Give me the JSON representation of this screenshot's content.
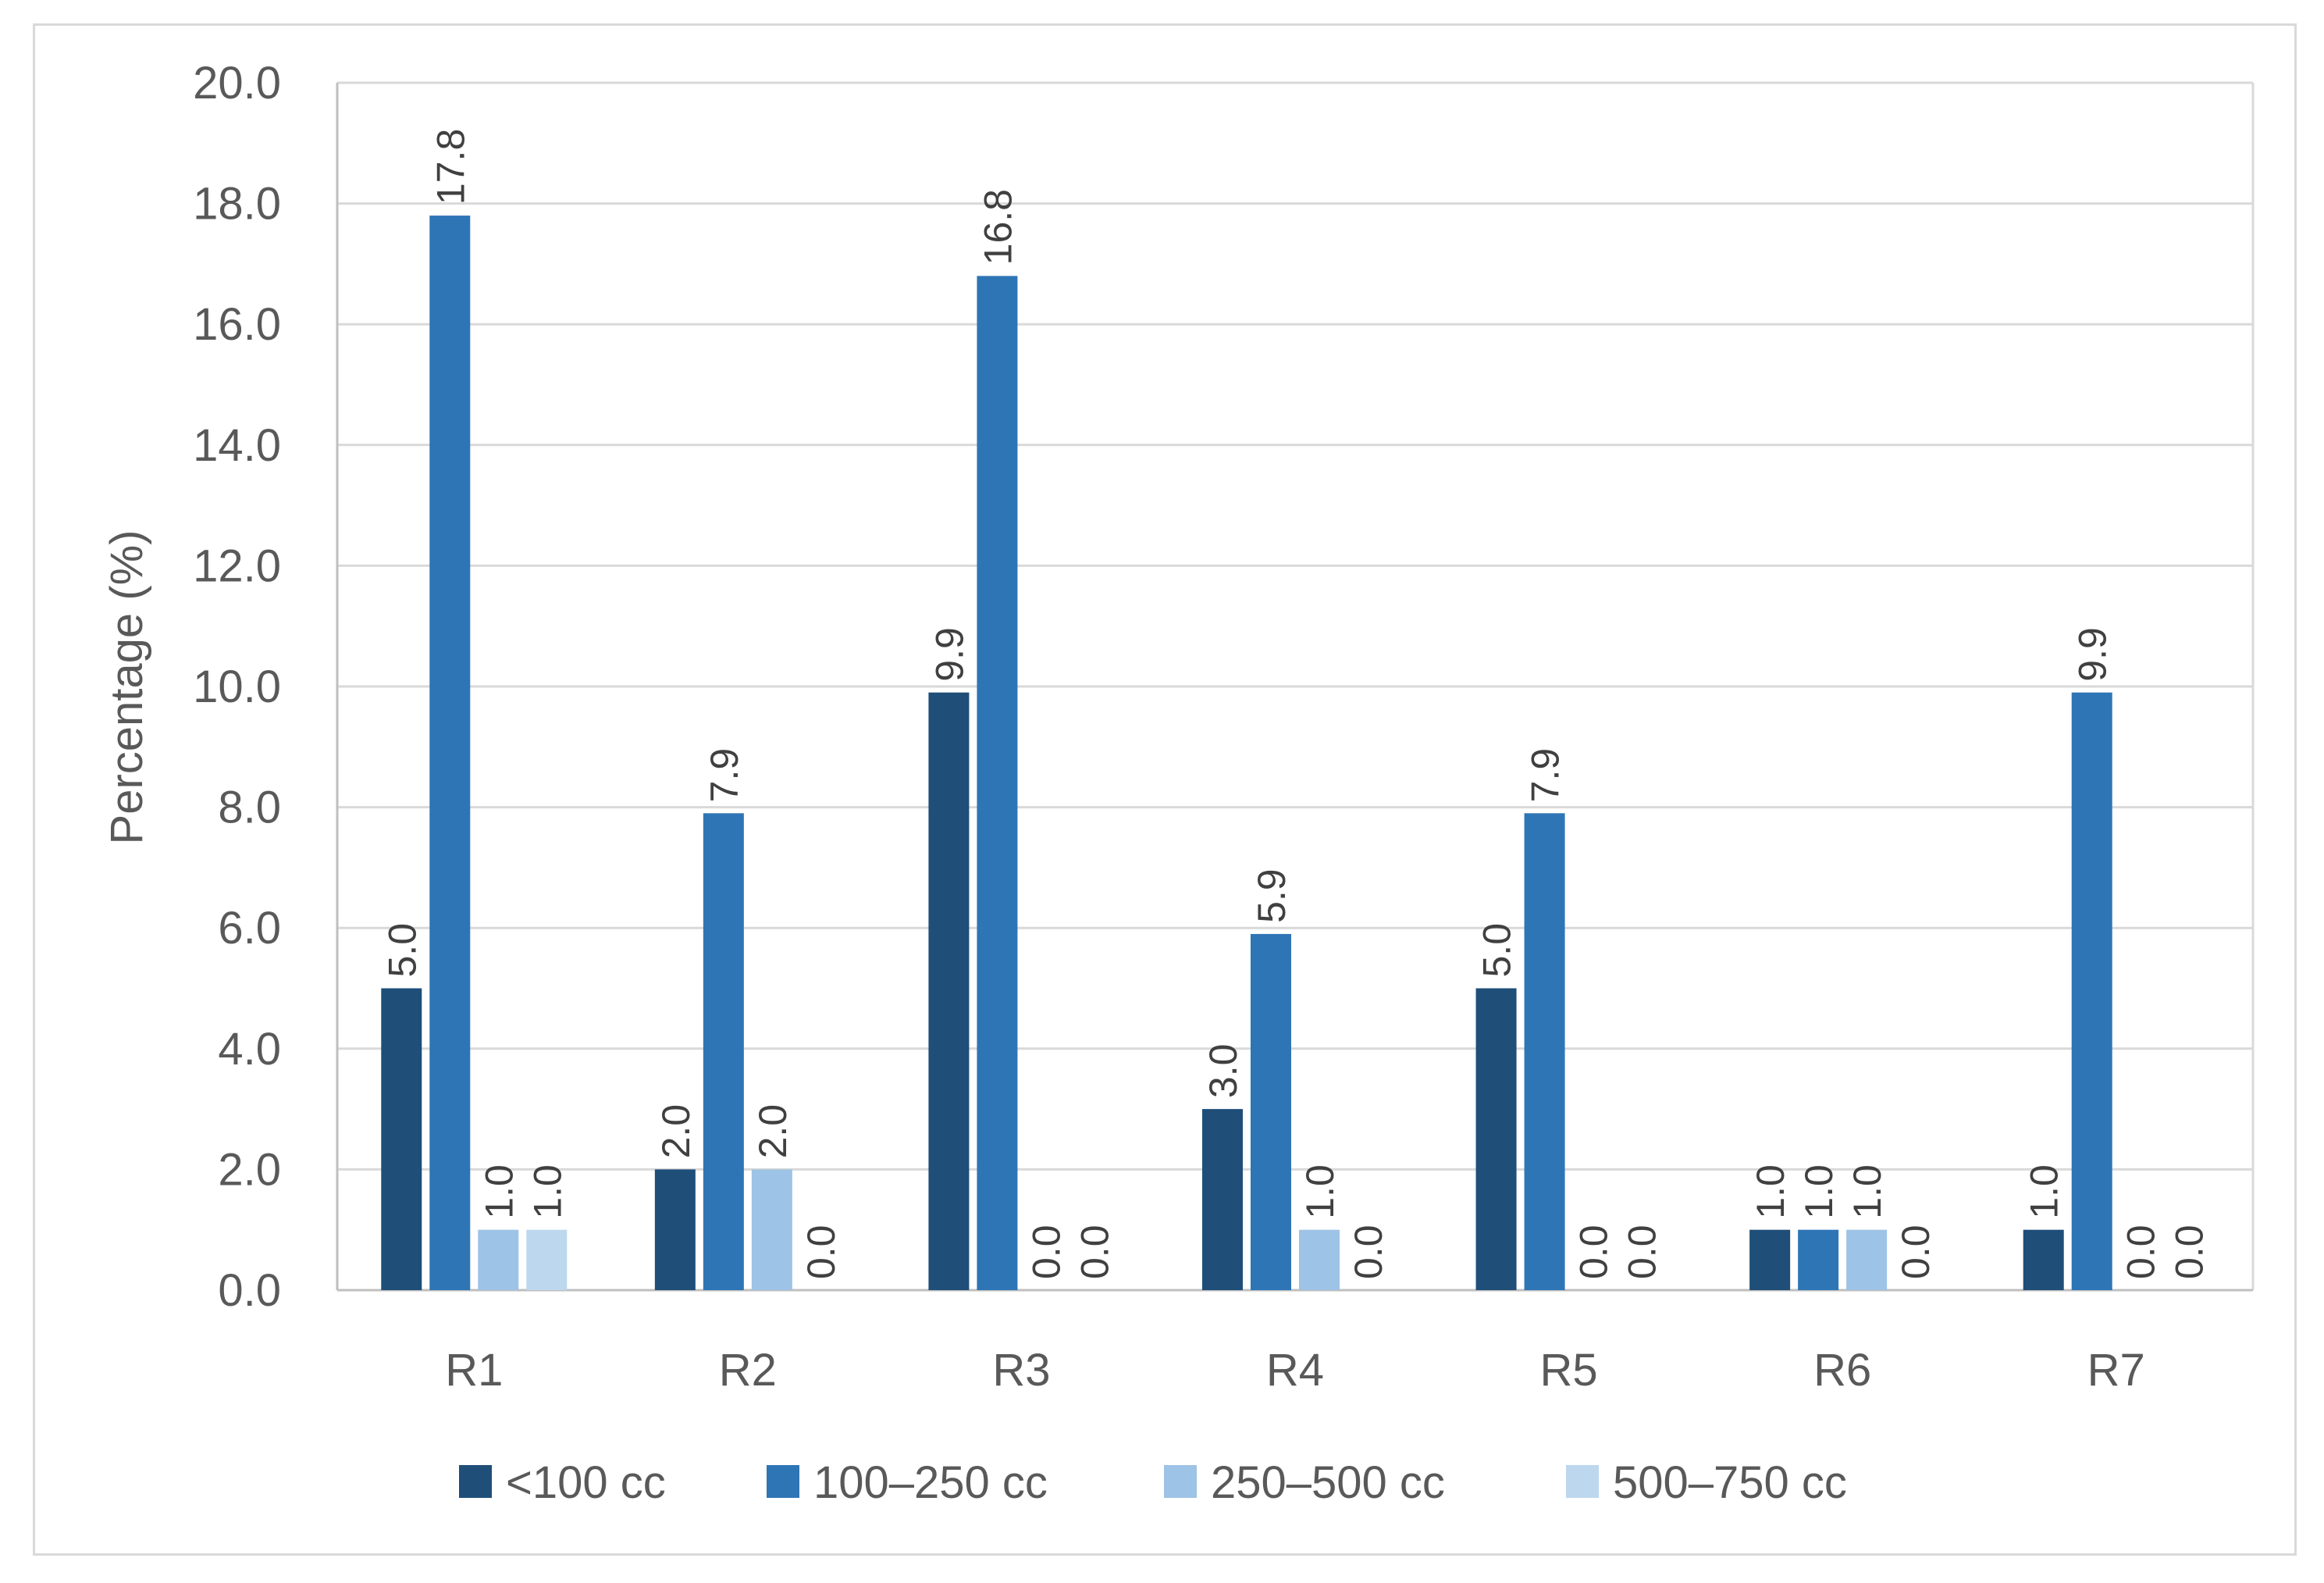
{
  "chart_data": {
    "type": "bar",
    "ylabel": "Percentage (%)",
    "xlabel": "",
    "ylim": [
      0,
      20
    ],
    "y_ticks": [
      "0.0",
      "2.0",
      "4.0",
      "6.0",
      "8.0",
      "10.0",
      "12.0",
      "14.0",
      "16.0",
      "18.0",
      "20.0"
    ],
    "grid": true,
    "legend_position": "bottom",
    "categories": [
      "R1",
      "R2",
      "R3",
      "R4",
      "R5",
      "R6",
      "R7"
    ],
    "series": [
      {
        "name": "<100 cc",
        "color": "#1f4e79",
        "values": [
          5.0,
          2.0,
          9.9,
          3.0,
          5.0,
          1.0,
          1.0
        ],
        "labels": [
          "5.0",
          "2.0",
          "9.9",
          "3.0",
          "5.0",
          "1.0",
          "1.0"
        ]
      },
      {
        "name": "100–250 cc",
        "color": "#2e75b6",
        "values": [
          17.8,
          7.9,
          16.8,
          5.9,
          7.9,
          1.0,
          9.9
        ],
        "labels": [
          "17.8",
          "7.9",
          "16.8",
          "5.9",
          "7.9",
          "1.0",
          "9.9"
        ]
      },
      {
        "name": "250–500 cc",
        "color": "#9dc3e6",
        "values": [
          1.0,
          2.0,
          0.0,
          1.0,
          0.0,
          1.0,
          0.0
        ],
        "labels": [
          "1.0",
          "2.0",
          "0.0",
          "1.0",
          "0.0",
          "1.0",
          "0.0"
        ]
      },
      {
        "name": "500–750 cc",
        "color": "#bdd7ee",
        "values": [
          1.0,
          0.0,
          0.0,
          0.0,
          0.0,
          0.0,
          0.0
        ],
        "labels": [
          "1.0",
          "0.0",
          "0.0",
          "0.0",
          "0.0",
          "0.0",
          "0.0"
        ]
      }
    ]
  }
}
